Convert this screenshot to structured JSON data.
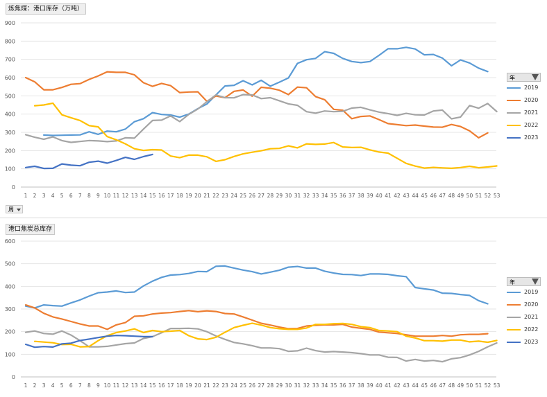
{
  "legend_label": "年",
  "week_selector_label": "周",
  "chart_data": [
    {
      "type": "line",
      "title": "炼焦煤：港口库存（万吨）",
      "categories": [
        "1",
        "2",
        "3",
        "4",
        "5",
        "6",
        "7",
        "8",
        "9",
        "10",
        "11",
        "12",
        "13",
        "14",
        "15",
        "16",
        "17",
        "18",
        "19",
        "20",
        "21",
        "22",
        "23",
        "24",
        "25",
        "26",
        "27",
        "28",
        "29",
        "30",
        "31",
        "32",
        "33",
        "34",
        "35",
        "36",
        "37",
        "38",
        "39",
        "40",
        "41",
        "42",
        "43",
        "44",
        "45",
        "46",
        "47",
        "48",
        "49",
        "50",
        "51",
        "52",
        "53"
      ],
      "ylim": [
        0,
        900
      ],
      "yticks": [
        0,
        100,
        200,
        300,
        400,
        500,
        600,
        700,
        800,
        900
      ],
      "grid": "horizontal",
      "legend_position": "right",
      "series": [
        {
          "name": "2019",
          "color": "#5b9bd5",
          "values": [
            null,
            null,
            285,
            283,
            284,
            285,
            286,
            303,
            289,
            307,
            303,
            318,
            358,
            375,
            408,
            398,
            395,
            383,
            400,
            430,
            455,
            505,
            554,
            558,
            583,
            560,
            585,
            553,
            575,
            598,
            678,
            698,
            705,
            742,
            733,
            705,
            688,
            682,
            688,
            722,
            758,
            758,
            766,
            757,
            725,
            727,
            707,
            665,
            697,
            680,
            652,
            633,
            null
          ]
        },
        {
          "name": "2020",
          "color": "#ed7d31",
          "values": [
            600,
            577,
            533,
            533,
            546,
            563,
            567,
            590,
            609,
            632,
            629,
            629,
            615,
            572,
            552,
            568,
            556,
            518,
            521,
            522,
            470,
            499,
            490,
            525,
            532,
            498,
            547,
            542,
            531,
            507,
            548,
            544,
            496,
            479,
            426,
            421,
            375,
            387,
            390,
            370,
            348,
            342,
            337,
            340,
            334,
            329,
            328,
            343,
            332,
            308,
            270,
            297,
            null
          ]
        },
        {
          "name": "2021",
          "color": "#a5a5a5",
          "values": [
            287,
            273,
            262,
            275,
            255,
            245,
            250,
            255,
            253,
            249,
            253,
            270,
            268,
            318,
            365,
            367,
            390,
            359,
            398,
            428,
            468,
            505,
            490,
            489,
            507,
            505,
            485,
            490,
            473,
            456,
            448,
            413,
            405,
            417,
            413,
            415,
            433,
            437,
            423,
            411,
            403,
            393,
            404,
            396,
            395,
            417,
            422,
            374,
            384,
            447,
            432,
            458,
            414
          ]
        },
        {
          "name": "2022",
          "color": "#ffc000",
          "values": [
            null,
            446,
            450,
            460,
            396,
            380,
            365,
            337,
            330,
            277,
            259,
            237,
            210,
            201,
            205,
            203,
            170,
            161,
            175,
            175,
            166,
            141,
            150,
            168,
            182,
            191,
            199,
            210,
            212,
            226,
            215,
            237,
            234,
            236,
            244,
            220,
            217,
            218,
            204,
            192,
            186,
            158,
            130,
            115,
            104,
            108,
            105,
            103,
            107,
            114,
            106,
            110,
            116
          ]
        },
        {
          "name": "2023",
          "color": "#4472c4",
          "values": [
            107,
            114,
            102,
            103,
            127,
            120,
            117,
            136,
            142,
            131,
            146,
            163,
            152,
            167,
            179,
            null,
            null,
            null,
            null,
            null,
            null,
            null,
            null,
            null,
            null,
            null,
            null,
            null,
            null,
            null,
            null,
            null,
            null,
            null,
            null,
            null,
            null,
            null,
            null,
            null,
            null,
            null,
            null,
            null,
            null,
            null,
            null,
            null,
            null,
            null,
            null,
            null,
            null
          ]
        }
      ]
    },
    {
      "type": "line",
      "title": "港口焦炭总库存",
      "categories": [
        "1",
        "2",
        "3",
        "4",
        "5",
        "6",
        "7",
        "8",
        "9",
        "10",
        "11",
        "12",
        "13",
        "14",
        "15",
        "16",
        "17",
        "18",
        "19",
        "20",
        "21",
        "22",
        "23",
        "24",
        "25",
        "26",
        "27",
        "28",
        "29",
        "30",
        "31",
        "32",
        "33",
        "34",
        "35",
        "36",
        "37",
        "38",
        "39",
        "40",
        "41",
        "42",
        "43",
        "44",
        "45",
        "46",
        "47",
        "48",
        "49",
        "50",
        "51",
        "52",
        "53"
      ],
      "ylim": [
        0,
        600
      ],
      "yticks": [
        0,
        100,
        200,
        300,
        400,
        500,
        600
      ],
      "grid": "horizontal",
      "legend_position": "right",
      "series": [
        {
          "name": "2019",
          "color": "#5b9bd5",
          "values": [
            313,
            305,
            318,
            315,
            313,
            327,
            340,
            357,
            372,
            375,
            380,
            373,
            375,
            402,
            423,
            440,
            450,
            452,
            457,
            466,
            465,
            489,
            490,
            481,
            472,
            465,
            455,
            463,
            471,
            485,
            488,
            481,
            481,
            467,
            459,
            453,
            452,
            448,
            455,
            455,
            453,
            447,
            443,
            395,
            389,
            384,
            370,
            369,
            364,
            360,
            337,
            323,
            null
          ]
        },
        {
          "name": "2020",
          "color": "#ed7d31",
          "values": [
            318,
            305,
            281,
            265,
            256,
            245,
            234,
            225,
            225,
            210,
            230,
            240,
            268,
            270,
            278,
            282,
            284,
            289,
            293,
            288,
            292,
            289,
            280,
            278,
            265,
            251,
            237,
            229,
            220,
            213,
            214,
            225,
            228,
            230,
            230,
            232,
            220,
            215,
            210,
            198,
            195,
            192,
            186,
            180,
            180,
            180,
            183,
            180,
            186,
            188,
            188,
            191,
            null
          ]
        },
        {
          "name": "2021",
          "color": "#a5a5a5",
          "values": [
            197,
            203,
            192,
            189,
            203,
            185,
            160,
            133,
            133,
            135,
            141,
            147,
            150,
            170,
            178,
            195,
            214,
            214,
            215,
            212,
            200,
            181,
            166,
            152,
            146,
            138,
            128,
            128,
            125,
            113,
            115,
            127,
            116,
            110,
            112,
            110,
            107,
            103,
            97,
            97,
            87,
            86,
            70,
            77,
            70,
            73,
            67,
            80,
            85,
            97,
            113,
            133,
            150
          ]
        },
        {
          "name": "2022",
          "color": "#ffc000",
          "values": [
            null,
            157,
            154,
            151,
            143,
            144,
            133,
            134,
            160,
            182,
            196,
            203,
            212,
            196,
            205,
            200,
            202,
            205,
            182,
            168,
            165,
            175,
            197,
            218,
            228,
            237,
            229,
            218,
            213,
            210,
            210,
            216,
            232,
            232,
            235,
            236,
            232,
            222,
            218,
            205,
            203,
            200,
            180,
            172,
            160,
            160,
            158,
            163,
            163,
            155,
            158,
            153,
            161
          ]
        },
        {
          "name": "2023",
          "color": "#4472c4",
          "values": [
            144,
            131,
            134,
            132,
            146,
            149,
            161,
            167,
            174,
            180,
            183,
            182,
            180,
            178,
            178,
            null,
            null,
            null,
            null,
            null,
            null,
            null,
            null,
            null,
            null,
            null,
            null,
            null,
            null,
            null,
            null,
            null,
            null,
            null,
            null,
            null,
            null,
            null,
            null,
            null,
            null,
            null,
            null,
            null,
            null,
            null,
            null,
            null,
            null,
            null,
            null,
            null,
            null
          ]
        }
      ]
    }
  ]
}
